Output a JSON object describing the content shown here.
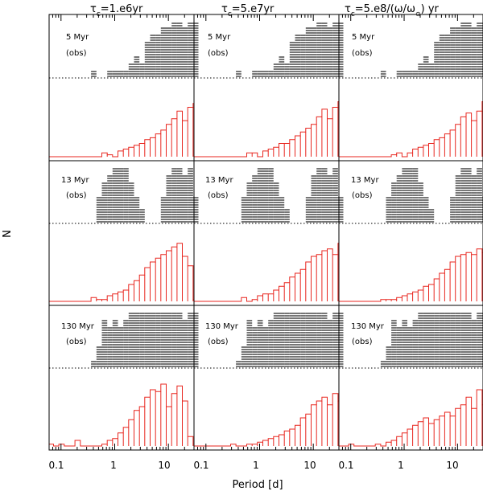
{
  "figure": {
    "xlabel": "Period [d]",
    "ylabel": "N"
  },
  "columns": [
    {
      "prefix": "τ",
      "sub": "c",
      "suffix": "=1.e6yr"
    },
    {
      "prefix": "τ",
      "sub": "c",
      "suffix": "=5.e7yr"
    },
    {
      "prefix": "τ",
      "sub": "c",
      "suffix": "=5.e8/(ω/ω",
      "sub2": "⊙",
      "suffix2": ") yr"
    }
  ],
  "rows": [
    {
      "age": "5 Myr",
      "obs": "(obs)"
    },
    {
      "age": "13 Myr",
      "obs": "(obs)"
    },
    {
      "age": "130 Myr",
      "obs": "(obs)"
    }
  ],
  "colors": {
    "observed": "#3a3a3a",
    "model": "#e8261f",
    "frame": "#000000"
  },
  "chart_data": {
    "type": "histogram-grid",
    "x_scale": "log10",
    "xlim": [
      0.06,
      30
    ],
    "xticks": [
      0.1,
      1,
      10
    ],
    "xtick_labels": [
      "0.1",
      "1",
      "10"
    ],
    "bin_edges_log10_start": -1.24,
    "bin_width_log10": 0.1,
    "obs_ymax": 8,
    "model_ymax": 33,
    "observed": [
      [
        0,
        0,
        0,
        0,
        0,
        0,
        0,
        0,
        1,
        0,
        0,
        1,
        1,
        1,
        1,
        2,
        3,
        2,
        5,
        6,
        6,
        7,
        7,
        11,
        8,
        7,
        9,
        10,
        15,
        9,
        8,
        5,
        2,
        1,
        0,
        0,
        0,
        0,
        0,
        0
      ],
      [
        0,
        0,
        0,
        0,
        0,
        0,
        0,
        0,
        0,
        4,
        6,
        7,
        9,
        8,
        9,
        6,
        4,
        2,
        0,
        0,
        0,
        4,
        7,
        9,
        11,
        7,
        10,
        4,
        9,
        0,
        0,
        0,
        0,
        0,
        0,
        0,
        0,
        0,
        0,
        0
      ],
      [
        0,
        0,
        0,
        0,
        0,
        0,
        0,
        0,
        1,
        3,
        7,
        6,
        7,
        6,
        7,
        8,
        9,
        11,
        17,
        14,
        12,
        10,
        10,
        9,
        8,
        7,
        14,
        9,
        11,
        7,
        7,
        4,
        3,
        0,
        0,
        0,
        0,
        0,
        0,
        0
      ]
    ],
    "models": [
      [
        [
          0,
          0,
          0,
          0,
          0,
          0,
          0,
          0,
          0,
          0,
          2,
          1,
          0,
          3,
          4,
          5,
          6,
          7,
          9,
          10,
          12,
          14,
          17,
          20,
          24,
          19,
          26,
          28,
          32,
          24,
          20,
          11,
          5,
          1,
          1,
          0,
          0,
          0,
          0,
          0
        ],
        [
          0,
          0,
          0,
          0,
          0,
          0,
          0,
          0,
          0,
          0,
          2,
          2,
          0,
          3,
          4,
          5,
          7,
          7,
          9,
          11,
          13,
          15,
          17,
          21,
          25,
          20,
          26,
          29,
          33,
          25,
          19,
          11,
          5,
          1,
          1,
          0,
          0,
          0,
          0,
          0
        ],
        [
          0,
          0,
          0,
          0,
          0,
          0,
          0,
          0,
          0,
          0,
          1,
          2,
          0,
          2,
          4,
          5,
          6,
          7,
          9,
          10,
          12,
          14,
          17,
          21,
          23,
          19,
          24,
          29,
          33,
          24,
          20,
          12,
          5,
          2,
          1,
          0,
          0,
          0,
          0,
          0
        ]
      ],
      [
        [
          0,
          0,
          0,
          0,
          0,
          0,
          0,
          0,
          2,
          1,
          1,
          3,
          4,
          5,
          6,
          9,
          11,
          14,
          18,
          21,
          23,
          25,
          27,
          29,
          31,
          24,
          19,
          1,
          0,
          0,
          0,
          0,
          0,
          0,
          0,
          0,
          0,
          0,
          0,
          0
        ],
        [
          0,
          0,
          0,
          0,
          0,
          0,
          0,
          0,
          0,
          2,
          0,
          1,
          3,
          4,
          4,
          6,
          8,
          10,
          13,
          15,
          17,
          21,
          24,
          25,
          27,
          28,
          25,
          31,
          21,
          9,
          1,
          0,
          0,
          0,
          0,
          0,
          0,
          0,
          0,
          0
        ],
        [
          0,
          0,
          0,
          0,
          0,
          0,
          0,
          0,
          1,
          1,
          1,
          2,
          3,
          4,
          5,
          6,
          8,
          9,
          12,
          15,
          17,
          21,
          24,
          25,
          26,
          25,
          28,
          26,
          10,
          0,
          0,
          0,
          0,
          0,
          0,
          0,
          0,
          0,
          0,
          0
        ]
      ],
      [
        [
          1,
          0,
          1,
          0,
          0,
          3,
          0,
          0,
          0,
          0,
          1,
          3,
          4,
          7,
          10,
          14,
          19,
          21,
          26,
          30,
          29,
          34,
          21,
          28,
          32,
          24,
          5,
          1,
          0,
          0,
          0,
          0,
          0,
          0,
          0,
          0,
          0,
          0,
          0,
          0
        ],
        [
          0,
          0,
          0,
          0,
          0,
          0,
          0,
          1,
          0,
          0,
          1,
          1,
          2,
          3,
          4,
          5,
          6,
          8,
          9,
          11,
          15,
          17,
          22,
          24,
          26,
          22,
          28,
          24,
          30,
          27,
          18,
          6,
          2,
          0,
          0,
          0,
          0,
          0,
          0,
          0
        ],
        [
          0,
          0,
          1,
          0,
          0,
          0,
          0,
          1,
          0,
          2,
          3,
          5,
          7,
          9,
          11,
          13,
          15,
          12,
          14,
          16,
          18,
          16,
          20,
          22,
          26,
          20,
          30,
          22,
          28,
          32,
          17,
          8,
          2,
          0,
          0,
          0,
          0,
          0,
          0,
          0
        ]
      ]
    ]
  }
}
